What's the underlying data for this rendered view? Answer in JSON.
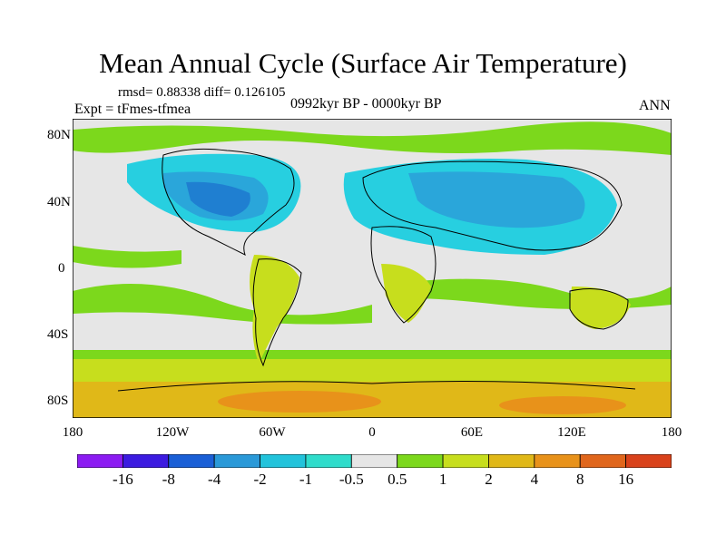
{
  "title": "Mean Annual Cycle (Surface Air Temperature)",
  "stats": "rmsd= 0.88338 diff= 0.126105",
  "experiment": "Expt = tFmes-tfmea",
  "period": "0992kyr BP - 0000kyr BP",
  "season": "ANN",
  "lat_labels": [
    "80N",
    "40N",
    "0",
    "40S",
    "80S"
  ],
  "lon_labels": [
    "180",
    "120W",
    "60W",
    "0",
    "60E",
    "120E",
    "180"
  ],
  "colorbar": {
    "labels": [
      "-16",
      "-8",
      "-4",
      "-2",
      "-1",
      "-0.5",
      "0.5",
      "1",
      "2",
      "4",
      "8",
      "16"
    ],
    "colors": [
      "#8c1bf2",
      "#3c1be0",
      "#1a5fd6",
      "#2a99d8",
      "#22c3db",
      "#2fdccb",
      "#e6e6e6",
      "#7cd81c",
      "#c7de1d",
      "#e0b818",
      "#e8921a",
      "#e0661c",
      "#d9421b"
    ]
  },
  "map_colors": {
    "ocean_neutral": "#e6e6e6",
    "cool_strong": "#1f7fd1",
    "cool": "#2aa6da",
    "cool_light": "#27cfe0",
    "warm_light": "#7cd81c",
    "warm": "#c7de1d",
    "warm_strong": "#e0b818",
    "warmer": "#e8921a"
  }
}
